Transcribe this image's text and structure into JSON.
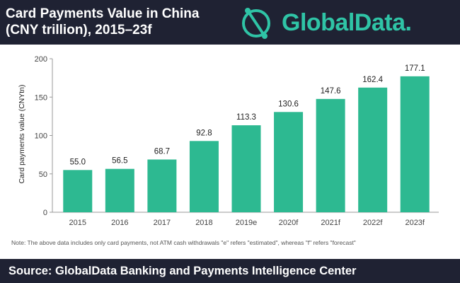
{
  "header": {
    "title_line1": "Card Payments Value in China",
    "title_line2": "(CNY trillion), 2015–23f",
    "brand_text": "GlobalData."
  },
  "colors": {
    "bar": "#2db991",
    "header_bg": "#1f2233",
    "brand": "#2fc4a6",
    "axis": "#9a9a9a"
  },
  "chart_data": {
    "type": "bar",
    "categories": [
      "2015",
      "2016",
      "2017",
      "2018",
      "2019e",
      "2020f",
      "2021f",
      "2022f",
      "2023f"
    ],
    "values": [
      55.0,
      56.5,
      68.7,
      92.8,
      113.3,
      130.6,
      147.6,
      162.4,
      177.1
    ],
    "value_labels": [
      "55.0",
      "56.5",
      "68.7",
      "92.8",
      "113.3",
      "130.6",
      "147.6",
      "162.4",
      "177.1"
    ],
    "ylabel": "Card payments value (CNYtn)",
    "xlabel": "",
    "ylim": [
      0,
      200
    ],
    "yticks": [
      "0",
      "50",
      "100",
      "150",
      "200"
    ],
    "grid": false,
    "legend": "none"
  },
  "note": "Note: The above data includes only card payments, not ATM cash withdrawals \"e\" refers \"estimated\", whereas \"f\" refers \"forecast\"",
  "footer": {
    "source": "Source: GlobalData Banking and Payments Intelligence Center"
  }
}
